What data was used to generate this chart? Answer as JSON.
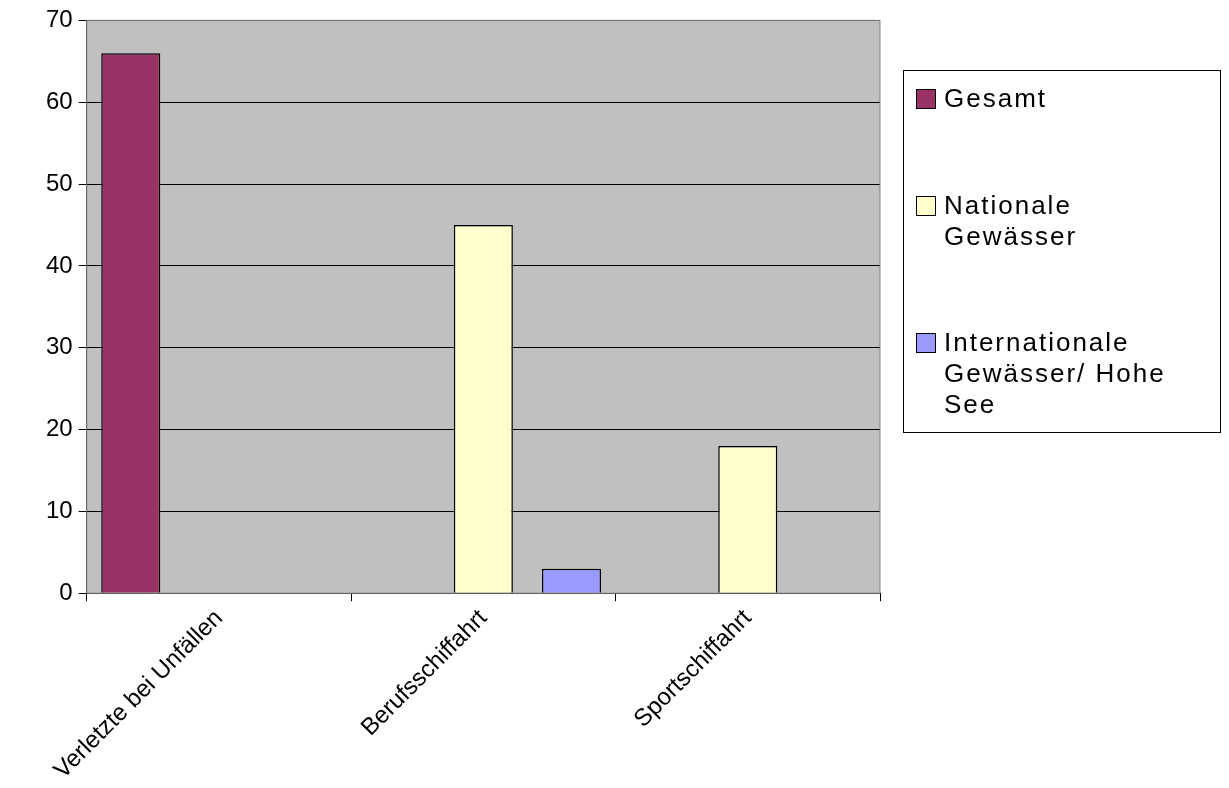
{
  "chart_data": {
    "type": "bar",
    "categories": [
      "Verletzte bei Unfällen",
      "Berufsschiffahrt",
      "Sportschiffahrt"
    ],
    "series": [
      {
        "name": "Gesamt",
        "color": "#993366",
        "values": [
          66,
          null,
          null
        ]
      },
      {
        "name": "Nationale Gewässer",
        "color": "#ffffcc",
        "values": [
          null,
          45,
          18
        ]
      },
      {
        "name": "Internationale Gewässer/ Hohe See",
        "color": "#9999ff",
        "values": [
          null,
          3,
          null
        ]
      }
    ],
    "ylim": [
      0,
      70
    ],
    "yticks": [
      0,
      10,
      20,
      30,
      40,
      50,
      60,
      70
    ],
    "grid": "y",
    "legend": "right"
  }
}
